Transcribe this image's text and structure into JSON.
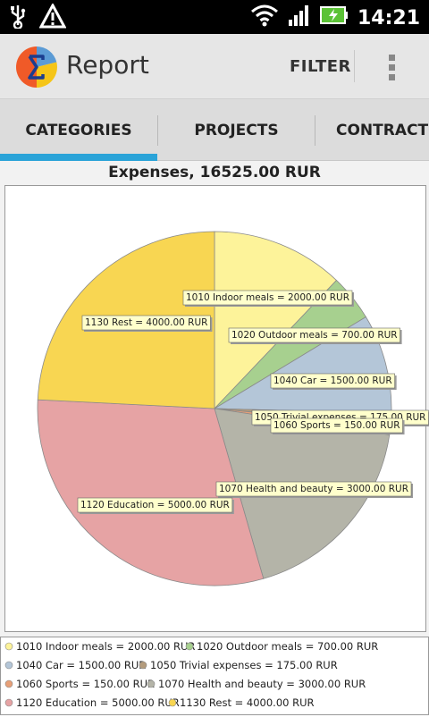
{
  "status": {
    "time": "14:21"
  },
  "app": {
    "title": "Report",
    "filter_label": "FILTER"
  },
  "tabs": [
    {
      "label": "CATEGORIES",
      "selected": true
    },
    {
      "label": "PROJECTS",
      "selected": false
    },
    {
      "label": "CONTRACTORS",
      "selected": false
    }
  ],
  "colors": {
    "accent": "#2aa3d8"
  },
  "chart_data": {
    "type": "pie",
    "title": "Expenses, 16525.00 RUR",
    "slices": [
      {
        "label": "1010 Indoor meals = 2000.00 RUR",
        "value": 2000.0,
        "color": "#fdf39a"
      },
      {
        "label": "1020 Outdoor meals = 700.00 RUR",
        "value": 700.0,
        "color": "#a7d08f"
      },
      {
        "label": "1040 Car = 1500.00 RUR",
        "value": 1500.0,
        "color": "#b4c6d8"
      },
      {
        "label": "1050 Trivial expenses = 175.00 RUR",
        "value": 175.0,
        "color": "#b39b7c"
      },
      {
        "label": "1060 Sports = 150.00 RUR",
        "value": 150.0,
        "color": "#e8a078"
      },
      {
        "label": "1070 Health and beauty = 3000.00 RUR",
        "value": 3000.0,
        "color": "#b4b4a8"
      },
      {
        "label": "1120 Education = 5000.00 RUR",
        "value": 5000.0,
        "color": "#e6a3a4"
      },
      {
        "label": "1130 Rest = 4000.00 RUR",
        "value": 4000.0,
        "color": "#f8d652"
      }
    ],
    "legend_position": "bottom"
  }
}
